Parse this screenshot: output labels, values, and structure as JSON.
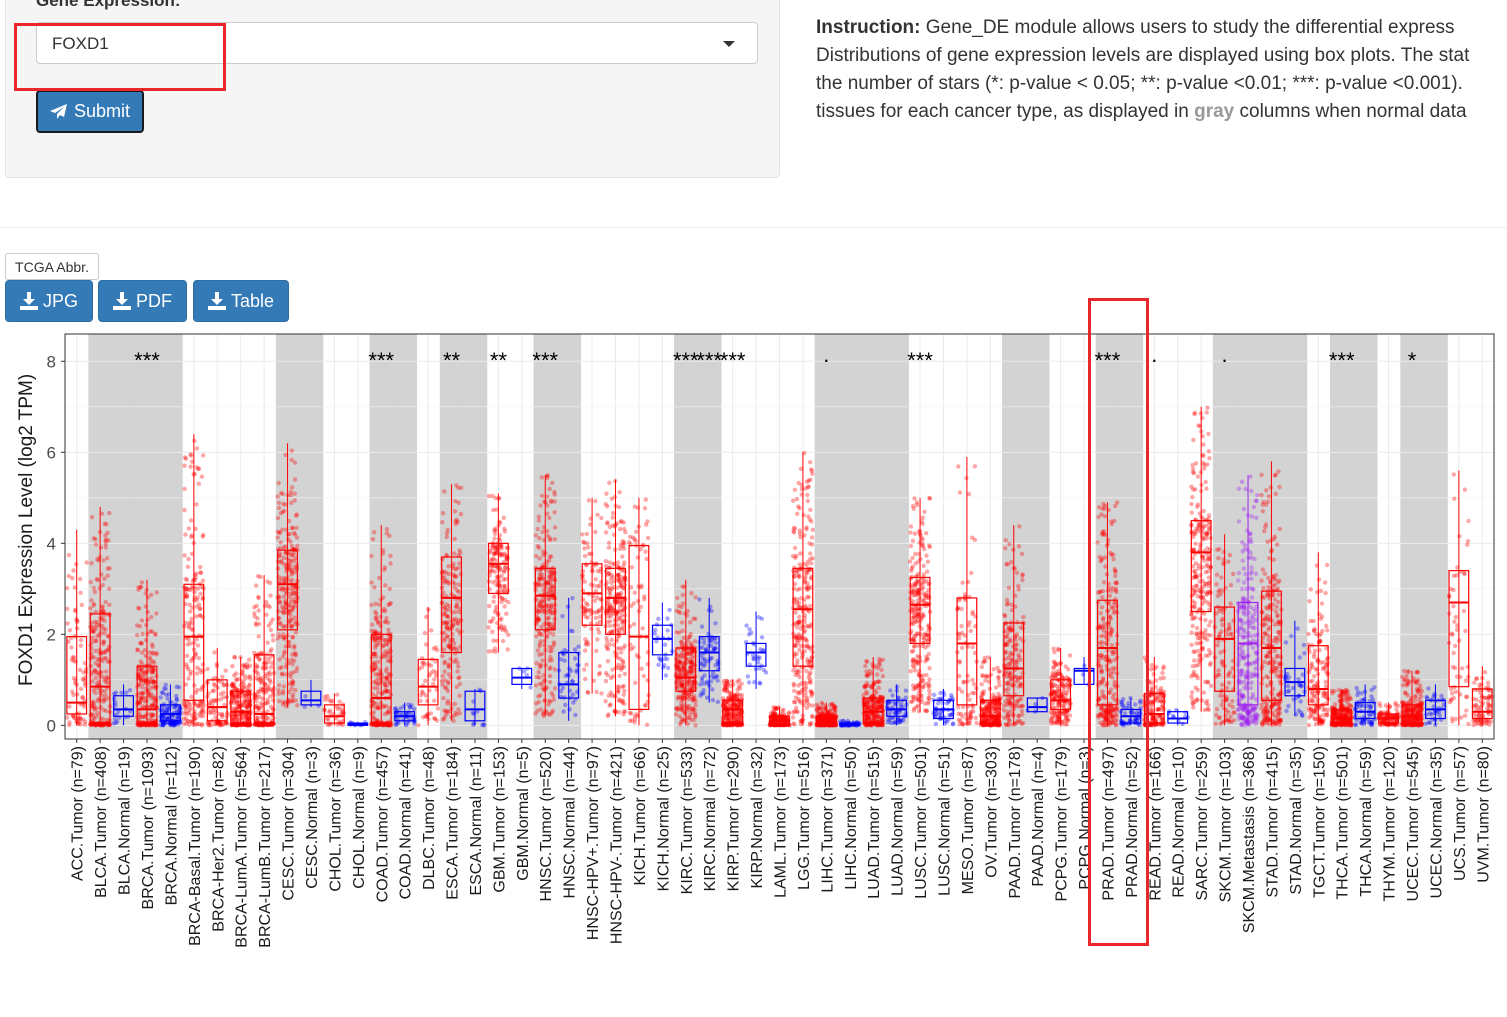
{
  "form": {
    "label": "Gene Expression:",
    "gene_value": "FOXD1",
    "submit_label": "Submit"
  },
  "instruction": {
    "heading": "Instruction:",
    "line1": "Gene_DE module allows users to study the differential express",
    "line2": "Distributions of gene expression levels are displayed using box plots. The stat",
    "line3": "the number of stars (*: p-value < 0.05; **: p-value <0.01; ***: p-value <0.001).",
    "line4_pre": "tissues for each cancer type, as displayed in ",
    "line4_gray": "gray",
    "line4_post": " columns when normal data"
  },
  "buttons": {
    "abbr": "TCGA Abbr.",
    "jpg": "JPG",
    "pdf": "PDF",
    "table": "Table"
  },
  "colors": {
    "tumor": "#ff0000",
    "normal": "#0000ff",
    "metastasis": "#a020f0",
    "highlight": "#e8262b",
    "shade": "#d3d3d3",
    "button": "#337ab7"
  },
  "chart_data": {
    "type": "box",
    "ylabel": "FOXD1 Expression Level (log2 TPM)",
    "ylim": [
      -0.3,
      8.6
    ],
    "yticks": [
      0,
      2,
      4,
      6,
      8
    ],
    "grid": true,
    "categories": [
      {
        "label": "ACC.Tumor (n=79)",
        "group": "tumor",
        "shade": false,
        "stars": "",
        "box": [
          0.25,
          0.5,
          1.95
        ],
        "whisk": [
          0,
          4.3
        ]
      },
      {
        "label": "BLCA.Tumor (n=408)",
        "group": "tumor",
        "shade": true,
        "stars": "",
        "box": [
          0.05,
          0.85,
          2.45
        ],
        "whisk": [
          0,
          4.8
        ]
      },
      {
        "label": "BLCA.Normal (n=19)",
        "group": "normal",
        "shade": true,
        "stars": "",
        "box": [
          0.2,
          0.35,
          0.65
        ],
        "whisk": [
          0,
          0.9
        ]
      },
      {
        "label": "BRCA.Tumor (n=1093)",
        "group": "tumor",
        "shade": true,
        "stars": "***",
        "box": [
          0.05,
          0.35,
          1.3
        ],
        "whisk": [
          0,
          3.2
        ]
      },
      {
        "label": "BRCA.Normal (n=112)",
        "group": "normal",
        "shade": true,
        "stars": "",
        "box": [
          0.1,
          0.25,
          0.45
        ],
        "whisk": [
          0,
          0.9
        ]
      },
      {
        "label": "BRCA-Basal.Tumor (n=190)",
        "group": "tumor",
        "shade": false,
        "stars": "",
        "box": [
          0.55,
          1.95,
          3.1
        ],
        "whisk": [
          0,
          6.4
        ]
      },
      {
        "label": "BRCA-Her2.Tumor (n=82)",
        "group": "tumor",
        "shade": false,
        "stars": "",
        "box": [
          0.1,
          0.4,
          1.0
        ],
        "whisk": [
          0,
          1.7
        ]
      },
      {
        "label": "BRCA-LumA.Tumor (n=564)",
        "group": "tumor",
        "shade": false,
        "stars": "",
        "box": [
          0.05,
          0.3,
          0.75
        ],
        "whisk": [
          0,
          1.5
        ]
      },
      {
        "label": "BRCA-LumB.Tumor (n=217)",
        "group": "tumor",
        "shade": false,
        "stars": "",
        "box": [
          0.05,
          0.25,
          1.55
        ],
        "whisk": [
          0,
          3.3
        ]
      },
      {
        "label": "CESC.Tumor (n=304)",
        "group": "tumor",
        "shade": true,
        "stars": "",
        "box": [
          2.1,
          3.1,
          3.85
        ],
        "whisk": [
          0.4,
          6.2
        ]
      },
      {
        "label": "CESC.Normal (n=3)",
        "group": "normal",
        "shade": true,
        "stars": "",
        "box": [
          0.45,
          0.55,
          0.75
        ],
        "whisk": [
          0.4,
          1.0
        ]
      },
      {
        "label": "CHOL.Tumor (n=36)",
        "group": "tumor",
        "shade": false,
        "stars": "",
        "box": [
          0.05,
          0.2,
          0.45
        ],
        "whisk": [
          0,
          0.7
        ]
      },
      {
        "label": "CHOL.Normal (n=9)",
        "group": "normal",
        "shade": false,
        "stars": "",
        "box": [
          0,
          0.02,
          0.05
        ],
        "whisk": [
          0,
          0.08
        ]
      },
      {
        "label": "COAD.Tumor (n=457)",
        "group": "tumor",
        "shade": true,
        "stars": "***",
        "box": [
          0.05,
          0.6,
          2.0
        ],
        "whisk": [
          0,
          4.4
        ]
      },
      {
        "label": "COAD.Normal (n=41)",
        "group": "normal",
        "shade": true,
        "stars": "",
        "box": [
          0.1,
          0.2,
          0.3
        ],
        "whisk": [
          0,
          0.5
        ]
      },
      {
        "label": "DLBC.Tumor (n=48)",
        "group": "tumor",
        "shade": false,
        "stars": "",
        "box": [
          0.45,
          0.85,
          1.45
        ],
        "whisk": [
          0,
          2.6
        ]
      },
      {
        "label": "ESCA.Tumor (n=184)",
        "group": "tumor",
        "shade": true,
        "stars": "**",
        "box": [
          1.6,
          2.8,
          3.7
        ],
        "whisk": [
          0.1,
          5.3
        ]
      },
      {
        "label": "ESCA.Normal (n=11)",
        "group": "normal",
        "shade": true,
        "stars": "",
        "box": [
          0.1,
          0.35,
          0.75
        ],
        "whisk": [
          0,
          0.8
        ]
      },
      {
        "label": "GBM.Tumor (n=153)",
        "group": "tumor",
        "shade": false,
        "stars": "**",
        "box": [
          2.9,
          3.55,
          4.0
        ],
        "whisk": [
          1.6,
          5.1
        ]
      },
      {
        "label": "GBM.Normal (n=5)",
        "group": "normal",
        "shade": false,
        "stars": "",
        "box": [
          0.9,
          1.05,
          1.25
        ],
        "whisk": [
          0.8,
          1.25
        ]
      },
      {
        "label": "HNSC.Tumor (n=520)",
        "group": "tumor",
        "shade": true,
        "stars": "***",
        "box": [
          2.1,
          2.85,
          3.45
        ],
        "whisk": [
          0.2,
          5.5
        ]
      },
      {
        "label": "HNSC.Normal (n=44)",
        "group": "normal",
        "shade": true,
        "stars": "",
        "box": [
          0.6,
          0.9,
          1.6
        ],
        "whisk": [
          0.1,
          2.8
        ]
      },
      {
        "label": "HNSC-HPV+.Tumor (n=97)",
        "group": "tumor",
        "shade": false,
        "stars": "",
        "box": [
          2.2,
          2.9,
          3.55
        ],
        "whisk": [
          0.7,
          5.0
        ]
      },
      {
        "label": "HNSC-HPV-.Tumor (n=421)",
        "group": "tumor",
        "shade": false,
        "stars": "",
        "box": [
          2.0,
          2.8,
          3.45
        ],
        "whisk": [
          0.2,
          5.4
        ]
      },
      {
        "label": "KICH.Tumor (n=66)",
        "group": "tumor",
        "shade": false,
        "stars": "",
        "box": [
          0.35,
          1.95,
          3.95
        ],
        "whisk": [
          0,
          5.0
        ]
      },
      {
        "label": "KICH.Normal (n=25)",
        "group": "normal",
        "shade": false,
        "stars": "",
        "box": [
          1.55,
          1.9,
          2.2
        ],
        "whisk": [
          1.0,
          2.7
        ]
      },
      {
        "label": "KIRC.Tumor (n=533)",
        "group": "tumor",
        "shade": true,
        "stars": "***",
        "box": [
          0.75,
          1.05,
          1.7
        ],
        "whisk": [
          0,
          3.2
        ]
      },
      {
        "label": "KIRC.Normal (n=72)",
        "group": "normal",
        "shade": true,
        "stars": "***",
        "box": [
          1.2,
          1.6,
          1.95
        ],
        "whisk": [
          0.5,
          2.8
        ]
      },
      {
        "label": "KIRP.Tumor (n=290)",
        "group": "tumor",
        "shade": false,
        "stars": "***",
        "box": [
          0.05,
          0.35,
          0.55
        ],
        "whisk": [
          0,
          1.0
        ]
      },
      {
        "label": "KIRP.Normal (n=32)",
        "group": "normal",
        "shade": false,
        "stars": "",
        "box": [
          1.3,
          1.6,
          1.8
        ],
        "whisk": [
          0.8,
          2.5
        ]
      },
      {
        "label": "LAML.Tumor (n=173)",
        "group": "tumor",
        "shade": false,
        "stars": "",
        "box": [
          0.02,
          0.1,
          0.2
        ],
        "whisk": [
          0,
          0.4
        ]
      },
      {
        "label": "LGG.Tumor (n=516)",
        "group": "tumor",
        "shade": false,
        "stars": "",
        "box": [
          1.3,
          2.55,
          3.45
        ],
        "whisk": [
          0,
          6.0
        ]
      },
      {
        "label": "LIHC.Tumor (n=371)",
        "group": "tumor",
        "shade": true,
        "stars": ".",
        "box": [
          0.02,
          0.08,
          0.2
        ],
        "whisk": [
          0,
          0.5
        ]
      },
      {
        "label": "LIHC.Normal (n=50)",
        "group": "normal",
        "shade": true,
        "stars": "",
        "box": [
          0,
          0.02,
          0.05
        ],
        "whisk": [
          0,
          0.1
        ]
      },
      {
        "label": "LUAD.Tumor (n=515)",
        "group": "tumor",
        "shade": true,
        "stars": "",
        "box": [
          0.05,
          0.3,
          0.6
        ],
        "whisk": [
          0,
          1.5
        ]
      },
      {
        "label": "LUAD.Normal (n=59)",
        "group": "normal",
        "shade": true,
        "stars": "",
        "box": [
          0.2,
          0.35,
          0.55
        ],
        "whisk": [
          0,
          0.9
        ]
      },
      {
        "label": "LUSC.Tumor (n=501)",
        "group": "tumor",
        "shade": false,
        "stars": "***",
        "box": [
          1.8,
          2.65,
          3.25
        ],
        "whisk": [
          0.3,
          5.0
        ]
      },
      {
        "label": "LUSC.Normal (n=51)",
        "group": "normal",
        "shade": false,
        "stars": "",
        "box": [
          0.15,
          0.35,
          0.55
        ],
        "whisk": [
          0,
          0.8
        ]
      },
      {
        "label": "MESO.Tumor (n=87)",
        "group": "tumor",
        "shade": false,
        "stars": "",
        "box": [
          0.45,
          1.8,
          2.8
        ],
        "whisk": [
          0,
          5.9
        ]
      },
      {
        "label": "OV.Tumor (n=303)",
        "group": "tumor",
        "shade": false,
        "stars": "",
        "box": [
          0.05,
          0.2,
          0.55
        ],
        "whisk": [
          0,
          1.5
        ]
      },
      {
        "label": "PAAD.Tumor (n=178)",
        "group": "tumor",
        "shade": true,
        "stars": "",
        "box": [
          0.65,
          1.25,
          2.25
        ],
        "whisk": [
          0,
          4.4
        ]
      },
      {
        "label": "PAAD.Normal (n=4)",
        "group": "normal",
        "shade": true,
        "stars": "",
        "box": [
          0.3,
          0.4,
          0.6
        ],
        "whisk": [
          0.3,
          0.6
        ]
      },
      {
        "label": "PCPG.Tumor (n=179)",
        "group": "tumor",
        "shade": false,
        "stars": "",
        "box": [
          0.35,
          0.55,
          1.0
        ],
        "whisk": [
          0,
          1.7
        ]
      },
      {
        "label": "PCPG.Normal (n=3)",
        "group": "normal",
        "shade": false,
        "stars": "",
        "box": [
          0.9,
          1.2,
          1.25
        ],
        "whisk": [
          0.9,
          1.5
        ]
      },
      {
        "label": "PRAD.Tumor (n=497)",
        "group": "tumor",
        "shade": true,
        "stars": "***",
        "box": [
          0.45,
          1.7,
          2.75
        ],
        "whisk": [
          0,
          4.9
        ]
      },
      {
        "label": "PRAD.Normal (n=52)",
        "group": "normal",
        "shade": true,
        "stars": "",
        "box": [
          0.05,
          0.2,
          0.35
        ],
        "whisk": [
          0,
          0.6
        ]
      },
      {
        "label": "READ.Tumor (n=166)",
        "group": "tumor",
        "shade": false,
        "stars": ".",
        "box": [
          0.05,
          0.25,
          0.7
        ],
        "whisk": [
          0,
          1.5
        ]
      },
      {
        "label": "READ.Normal (n=10)",
        "group": "normal",
        "shade": false,
        "stars": "",
        "box": [
          0.05,
          0.15,
          0.3
        ],
        "whisk": [
          0,
          0.35
        ]
      },
      {
        "label": "SARC.Tumor (n=259)",
        "group": "tumor",
        "shade": false,
        "stars": "",
        "box": [
          2.5,
          3.8,
          4.5
        ],
        "whisk": [
          0.3,
          7.0
        ]
      },
      {
        "label": "SKCM.Tumor (n=103)",
        "group": "tumor",
        "shade": true,
        "stars": ".",
        "box": [
          0.75,
          1.9,
          2.6
        ],
        "whisk": [
          0,
          4.2
        ]
      },
      {
        "label": "SKCM.Metastasis (n=368)",
        "group": "metastasis",
        "shade": true,
        "stars": "",
        "box": [
          0.45,
          1.8,
          2.7
        ],
        "whisk": [
          0,
          5.5
        ]
      },
      {
        "label": "STAD.Tumor (n=415)",
        "group": "tumor",
        "shade": true,
        "stars": "",
        "box": [
          0.55,
          1.7,
          2.95
        ],
        "whisk": [
          0,
          5.8
        ]
      },
      {
        "label": "STAD.Normal (n=35)",
        "group": "normal",
        "shade": true,
        "stars": "",
        "box": [
          0.65,
          0.95,
          1.25
        ],
        "whisk": [
          0.2,
          2.3
        ]
      },
      {
        "label": "TGCT.Tumor (n=150)",
        "group": "tumor",
        "shade": false,
        "stars": "",
        "box": [
          0.45,
          0.8,
          1.75
        ],
        "whisk": [
          0,
          3.8
        ]
      },
      {
        "label": "THCA.Tumor (n=501)",
        "group": "tumor",
        "shade": true,
        "stars": "***",
        "box": [
          0.05,
          0.15,
          0.35
        ],
        "whisk": [
          0,
          0.8
        ]
      },
      {
        "label": "THCA.Normal (n=59)",
        "group": "normal",
        "shade": true,
        "stars": "",
        "box": [
          0.15,
          0.3,
          0.5
        ],
        "whisk": [
          0,
          0.9
        ]
      },
      {
        "label": "THYM.Tumor (n=120)",
        "group": "tumor",
        "shade": false,
        "stars": "",
        "box": [
          0.05,
          0.15,
          0.25
        ],
        "whisk": [
          0,
          0.5
        ]
      },
      {
        "label": "UCEC.Tumor (n=545)",
        "group": "tumor",
        "shade": true,
        "stars": "*",
        "box": [
          0.05,
          0.2,
          0.45
        ],
        "whisk": [
          0,
          1.2
        ]
      },
      {
        "label": "UCEC.Normal (n=35)",
        "group": "normal",
        "shade": true,
        "stars": "",
        "box": [
          0.15,
          0.35,
          0.55
        ],
        "whisk": [
          0,
          0.9
        ]
      },
      {
        "label": "UCS.Tumor (n=57)",
        "group": "tumor",
        "shade": false,
        "stars": "",
        "box": [
          0.85,
          2.7,
          3.4
        ],
        "whisk": [
          0,
          5.6
        ]
      },
      {
        "label": "UVM.Tumor (n=80)",
        "group": "tumor",
        "shade": false,
        "stars": "",
        "box": [
          0.15,
          0.3,
          0.8
        ],
        "whisk": [
          0,
          1.3
        ]
      }
    ]
  }
}
